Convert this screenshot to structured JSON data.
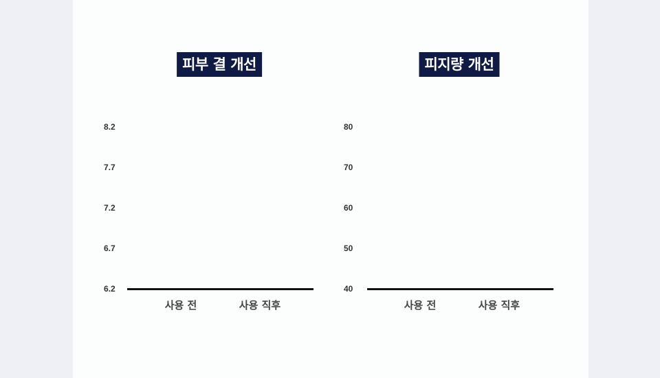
{
  "chart_data": [
    {
      "type": "bar",
      "title": "피부 결 개선",
      "categories": [
        "사용 전",
        "사용 직후"
      ],
      "yticks": [
        "8.2",
        "7.7",
        "7.2",
        "6.7",
        "6.2"
      ],
      "ylim": [
        6.2,
        8.2
      ],
      "grid": false,
      "series": [
        {
          "values": [
            null,
            null
          ]
        }
      ]
    },
    {
      "type": "bar",
      "title": "피지량 개선",
      "categories": [
        "사용 전",
        "사용 직후"
      ],
      "yticks": [
        "80",
        "70",
        "60",
        "50",
        "40"
      ],
      "ylim": [
        40,
        80
      ],
      "grid": false,
      "series": [
        {
          "values": [
            null,
            null
          ]
        }
      ]
    }
  ],
  "colors": {
    "title_bg": "#0f1a45",
    "axis": "#111111",
    "background": "#eef0f5",
    "card": "#fcfdfd"
  }
}
